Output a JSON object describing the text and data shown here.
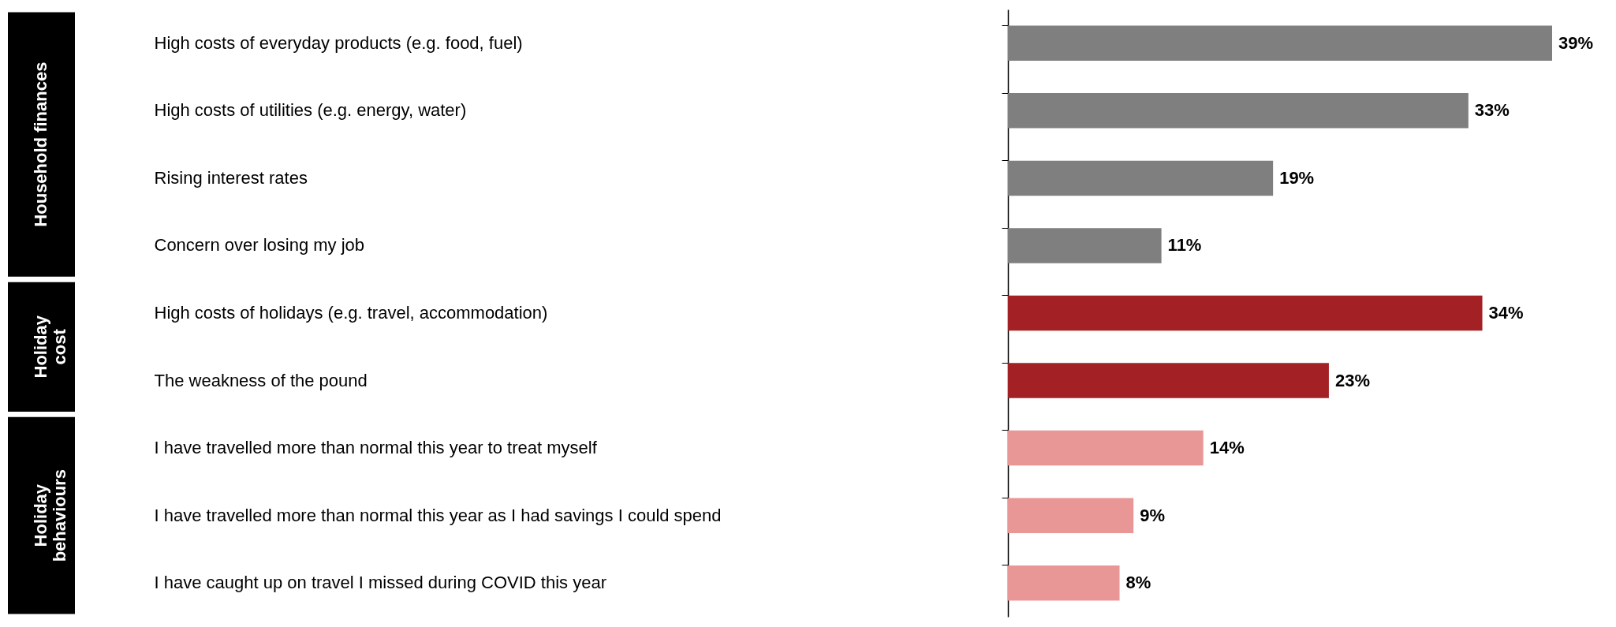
{
  "chart_data": {
    "type": "bar",
    "orientation": "horizontal",
    "legend": false,
    "grid": false,
    "categories": [
      "High costs of everyday products (e.g. food, fuel)",
      "High costs of utilities (e.g. energy, water)",
      "Rising interest rates",
      "Concern over losing my job",
      "High costs of holidays (e.g. travel, accommodation)",
      "The weakness of the pound",
      "I have travelled more than normal this year to treat myself",
      "I have travelled more than normal this year as I had savings I could spend",
      "I have caught up on travel I missed during COVID this year"
    ],
    "series": [
      {
        "color": "#7f7f7f",
        "values": [
          39,
          33,
          19,
          11,
          null,
          null,
          null,
          null,
          null
        ],
        "value_labels": [
          "39%",
          "33%",
          "19%",
          "11%",
          null,
          null,
          null,
          null,
          null
        ]
      },
      {
        "color": "#a32024",
        "values": [
          null,
          null,
          null,
          null,
          34,
          23,
          null,
          null,
          null
        ],
        "value_labels": [
          null,
          null,
          null,
          null,
          "34%",
          "23%",
          null,
          null,
          null
        ]
      },
      {
        "color": "#e99696",
        "values": [
          null,
          null,
          null,
          null,
          null,
          null,
          14,
          9,
          8
        ],
        "value_labels": [
          null,
          null,
          null,
          null,
          null,
          null,
          "14%",
          "9%",
          "8%"
        ]
      }
    ],
    "annotations": [
      "Household finances",
      "Holiday cost",
      "Holiday behaviours"
    ]
  }
}
